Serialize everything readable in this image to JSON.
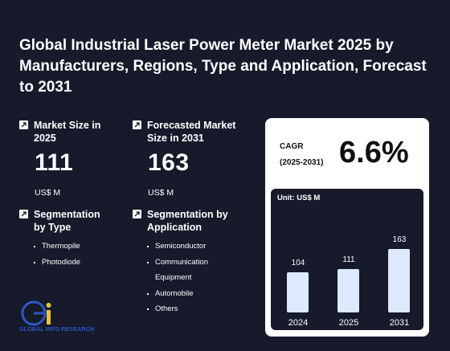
{
  "title": "Global Industrial Laser Power Meter Market 2025 by Manufacturers, Regions, Type and Application, Forecast to 2031",
  "market_size": {
    "label": "Market Size in 2025",
    "value": "111",
    "unit": "US$ M"
  },
  "forecast_size": {
    "label": "Forecasted Market Size in 2031",
    "value": "163",
    "unit": "US$ M"
  },
  "segmentation_type": {
    "label": "Segmentation by Type",
    "items": [
      "Thermopile",
      "Photodiode"
    ]
  },
  "segmentation_application": {
    "label": "Segmentation by Application",
    "items": [
      "Semiconductor",
      "Communication Equipment",
      "Automobile",
      "Others"
    ]
  },
  "cagr": {
    "label_line1": "CAGR",
    "label_line2": "(2025-2031)",
    "value": "6.6%"
  },
  "chart_data": {
    "type": "bar",
    "unit_label": "Unit: US$ M",
    "categories": [
      "2024",
      "2025",
      "2031"
    ],
    "values": [
      104,
      111,
      163
    ],
    "value_labels": [
      "104",
      "111",
      "163"
    ],
    "ylim": [
      0,
      163
    ]
  },
  "logo": {
    "text": "GLOBAL INFO RESEARCH"
  },
  "colors": {
    "background": "#161a2b",
    "bar": "#dce9ff",
    "card": "#ffffff",
    "logo_blue": "#2e57c4",
    "logo_yellow": "#e8c23a"
  }
}
